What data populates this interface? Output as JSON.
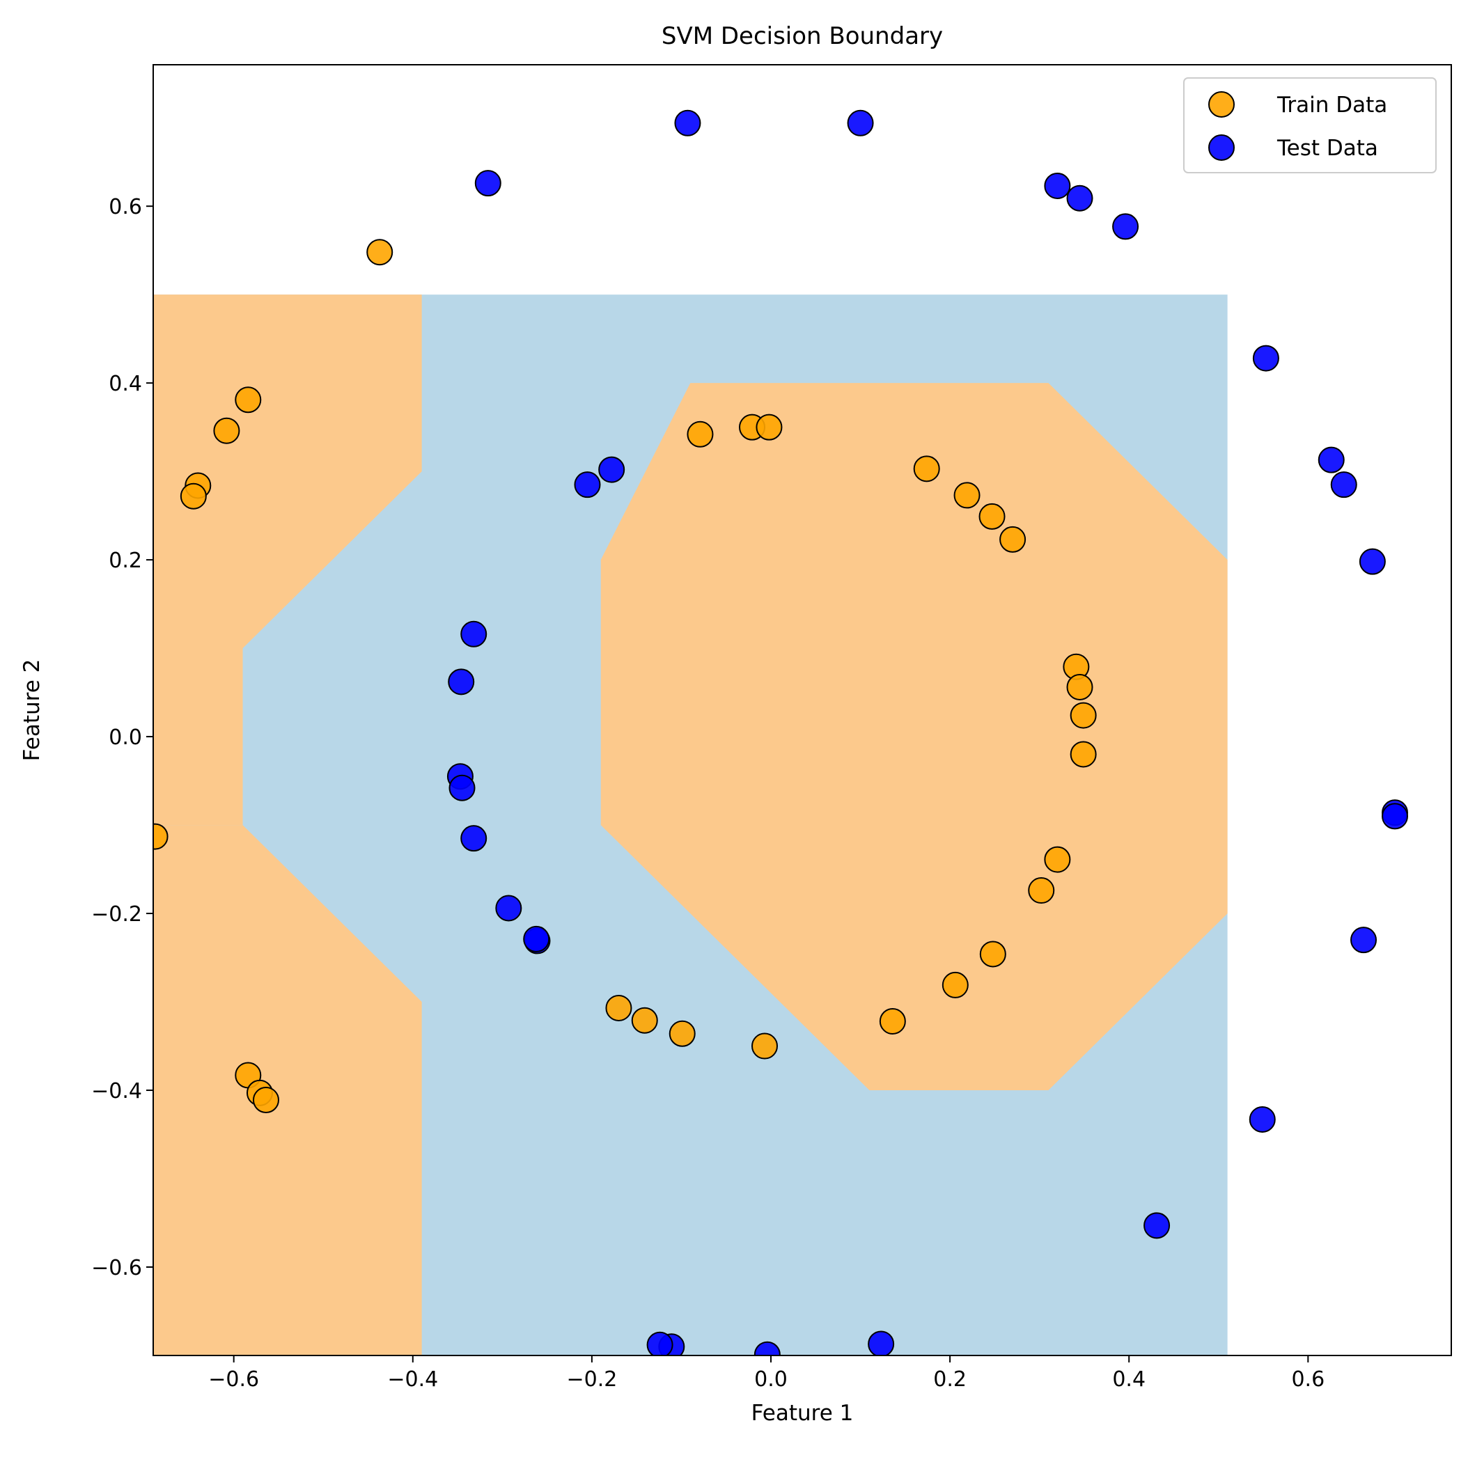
{
  "chart_data": {
    "type": "scatter",
    "title": "SVM Decision Boundary",
    "xlabel": "Feature 1",
    "ylabel": "Feature 2",
    "xlim": [
      -0.69,
      0.76
    ],
    "ylim": [
      -0.7,
      0.76
    ],
    "xticks": [
      -0.6,
      -0.4,
      -0.2,
      0.0,
      0.2,
      0.4,
      0.6
    ],
    "yticks": [
      -0.6,
      -0.4,
      -0.2,
      0.0,
      0.2,
      0.4,
      0.6
    ],
    "xtick_labels": [
      "−0.6",
      "−0.4",
      "−0.2",
      "0.0",
      "0.2",
      "0.4",
      "0.6"
    ],
    "ytick_labels": [
      "−0.6",
      "−0.4",
      "−0.2",
      "0.0",
      "0.2",
      "0.4",
      "0.6"
    ],
    "grid": false,
    "legend_placement": "top-right",
    "decision_regions": {
      "extent": {
        "x": [
          -0.69,
          0.51
        ],
        "y": [
          -0.7,
          0.5
        ]
      },
      "background_color": "#b8d7e8",
      "class_color": "#fcc98c",
      "regions": [
        {
          "name": "left-upper",
          "points": [
            [
              -0.69,
              0.5
            ],
            [
              -0.39,
              0.5
            ],
            [
              -0.39,
              0.3
            ],
            [
              -0.59,
              0.1
            ],
            [
              -0.59,
              -0.1
            ],
            [
              -0.69,
              -0.1
            ]
          ]
        },
        {
          "name": "left-lower",
          "points": [
            [
              -0.69,
              -0.1
            ],
            [
              -0.59,
              -0.1
            ],
            [
              -0.39,
              -0.3
            ],
            [
              -0.39,
              -0.7
            ],
            [
              -0.69,
              -0.7
            ]
          ]
        },
        {
          "name": "center",
          "points": [
            [
              -0.09,
              0.4
            ],
            [
              0.31,
              0.4
            ],
            [
              0.51,
              0.2
            ],
            [
              0.51,
              -0.2
            ],
            [
              0.31,
              -0.4
            ],
            [
              0.11,
              -0.4
            ],
            [
              -0.19,
              -0.1
            ],
            [
              -0.19,
              0.2
            ]
          ]
        }
      ]
    },
    "series": [
      {
        "name": "Train Data",
        "color": "#ffa500",
        "points": [
          [
            -0.437,
            0.548
          ],
          [
            -0.584,
            0.381
          ],
          [
            -0.608,
            0.346
          ],
          [
            -0.64,
            0.284
          ],
          [
            -0.645,
            0.272
          ],
          [
            -0.688,
            -0.113
          ],
          [
            -0.584,
            -0.383
          ],
          [
            -0.571,
            -0.403
          ],
          [
            -0.564,
            -0.411
          ],
          [
            -0.079,
            0.342
          ],
          [
            -0.021,
            0.35
          ],
          [
            -0.002,
            0.35
          ],
          [
            0.174,
            0.303
          ],
          [
            0.219,
            0.273
          ],
          [
            0.247,
            0.249
          ],
          [
            0.27,
            0.223
          ],
          [
            0.341,
            0.079
          ],
          [
            0.345,
            0.056
          ],
          [
            0.349,
            0.024
          ],
          [
            0.349,
            -0.02
          ],
          [
            0.32,
            -0.139
          ],
          [
            0.302,
            -0.174
          ],
          [
            0.248,
            -0.246
          ],
          [
            0.206,
            -0.281
          ],
          [
            0.136,
            -0.322
          ],
          [
            -0.17,
            -0.307
          ],
          [
            -0.141,
            -0.321
          ],
          [
            -0.099,
            -0.336
          ],
          [
            -0.007,
            -0.35
          ]
        ]
      },
      {
        "name": "Test Data",
        "color": "#0000ff",
        "points": [
          [
            -0.316,
            0.626
          ],
          [
            -0.093,
            0.694
          ],
          [
            0.1,
            0.694
          ],
          [
            0.32,
            0.623
          ],
          [
            0.345,
            0.609
          ],
          [
            0.396,
            0.577
          ],
          [
            0.553,
            0.428
          ],
          [
            0.626,
            0.313
          ],
          [
            0.64,
            0.285
          ],
          [
            0.672,
            0.198
          ],
          [
            0.697,
            -0.086
          ],
          [
            0.697,
            -0.09
          ],
          [
            0.662,
            -0.23
          ],
          [
            0.549,
            -0.433
          ],
          [
            0.431,
            -0.553
          ],
          [
            0.123,
            -0.687
          ],
          [
            -0.004,
            -0.699
          ],
          [
            -0.111,
            -0.69
          ],
          [
            -0.124,
            -0.688
          ],
          [
            -0.178,
            0.302
          ],
          [
            -0.205,
            0.285
          ],
          [
            -0.332,
            0.116
          ],
          [
            -0.346,
            0.062
          ],
          [
            -0.347,
            -0.045
          ],
          [
            -0.345,
            -0.058
          ],
          [
            -0.332,
            -0.115
          ],
          [
            -0.293,
            -0.194
          ],
          [
            -0.261,
            -0.231
          ],
          [
            -0.262,
            -0.229
          ]
        ]
      }
    ]
  }
}
